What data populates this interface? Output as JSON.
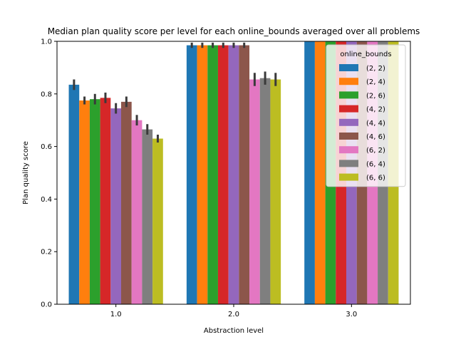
{
  "chart_data": {
    "type": "bar",
    "title": "Median plan quality score per level for each online_bounds averaged over all problems",
    "xlabel": "Abstraction level",
    "ylabel": "Plan quality score",
    "ylim": [
      0,
      1.0
    ],
    "yticks": [
      "0.0",
      "0.2",
      "0.4",
      "0.6",
      "0.8",
      "1.0"
    ],
    "categories": [
      "1.0",
      "2.0",
      "3.0"
    ],
    "legend_title": "online_bounds",
    "legend_position": "top-right",
    "grid": false,
    "error_bar_color": "#3a3a3a",
    "series": [
      {
        "name": "(2, 2)",
        "color": "#1f77b4",
        "values": [
          0.835,
          0.985,
          1.0
        ],
        "err": [
          0.02,
          0.01,
          0.0
        ]
      },
      {
        "name": "(2, 4)",
        "color": "#ff7f0e",
        "values": [
          0.775,
          0.985,
          1.0
        ],
        "err": [
          0.015,
          0.01,
          0.0
        ]
      },
      {
        "name": "(2, 6)",
        "color": "#2ca02c",
        "values": [
          0.78,
          0.985,
          1.0
        ],
        "err": [
          0.02,
          0.01,
          0.0
        ]
      },
      {
        "name": "(4, 2)",
        "color": "#d62728",
        "values": [
          0.785,
          0.985,
          1.0
        ],
        "err": [
          0.02,
          0.01,
          0.0
        ]
      },
      {
        "name": "(4, 4)",
        "color": "#9467bd",
        "values": [
          0.745,
          0.985,
          1.0
        ],
        "err": [
          0.02,
          0.01,
          0.0
        ]
      },
      {
        "name": "(4, 6)",
        "color": "#8c564b",
        "values": [
          0.77,
          0.985,
          1.0
        ],
        "err": [
          0.02,
          0.01,
          0.0
        ]
      },
      {
        "name": "(6, 2)",
        "color": "#e377c2",
        "values": [
          0.7,
          0.855,
          1.0
        ],
        "err": [
          0.02,
          0.025,
          0.0
        ]
      },
      {
        "name": "(6, 4)",
        "color": "#7f7f7f",
        "values": [
          0.665,
          0.86,
          1.0
        ],
        "err": [
          0.02,
          0.025,
          0.0
        ]
      },
      {
        "name": "(6, 6)",
        "color": "#bcbd22",
        "values": [
          0.63,
          0.855,
          1.0
        ],
        "err": [
          0.015,
          0.025,
          0.0
        ]
      }
    ]
  }
}
